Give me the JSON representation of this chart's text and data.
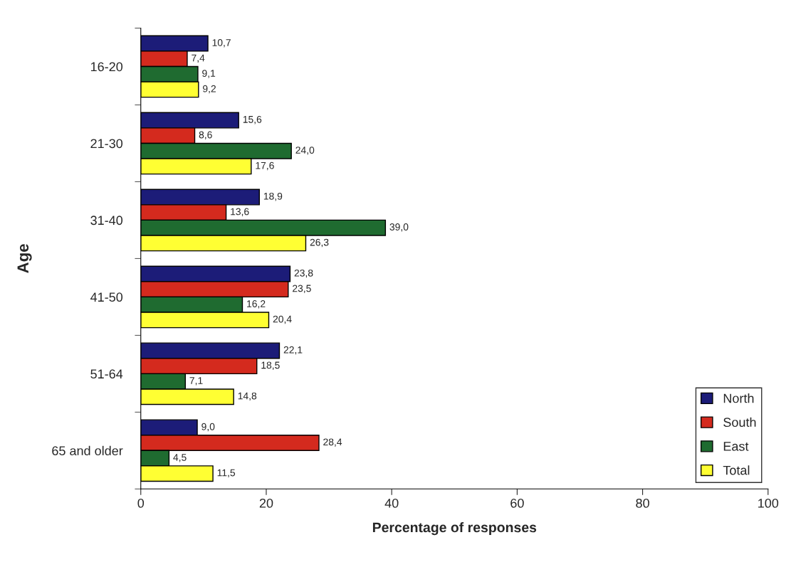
{
  "chart_data": {
    "type": "bar",
    "orientation": "horizontal",
    "xlabel": "Percentage of responses",
    "ylabel": "Age",
    "categories": [
      "16-20",
      "21-30",
      "31-40",
      "41-50",
      "51-64",
      "65 and older"
    ],
    "series": [
      {
        "name": "North",
        "color": "#1c1c78",
        "values": [
          10.7,
          15.6,
          18.9,
          23.8,
          22.1,
          9.0
        ],
        "value_labels": [
          "10,7",
          "15,6",
          "18,9",
          "23,8",
          "22,1",
          "9,0"
        ]
      },
      {
        "name": "South",
        "color": "#d42a1e",
        "values": [
          7.4,
          8.6,
          13.6,
          23.5,
          18.5,
          28.4
        ],
        "value_labels": [
          "7,4",
          "8,6",
          "13,6",
          "23,5",
          "18,5",
          "28,4"
        ]
      },
      {
        "name": "East",
        "color": "#1f6b30",
        "values": [
          9.1,
          24.0,
          39.0,
          16.2,
          7.1,
          4.5
        ],
        "value_labels": [
          "9,1",
          "24,0",
          "39,0",
          "16,2",
          "7,1",
          "4,5"
        ]
      },
      {
        "name": "Total",
        "color": "#ffff33",
        "values": [
          9.2,
          17.6,
          26.3,
          20.4,
          14.8,
          11.5
        ],
        "value_labels": [
          "9,2",
          "17,6",
          "26,3",
          "20,4",
          "14,8",
          "11,5"
        ]
      }
    ],
    "xlim": [
      0,
      100
    ],
    "xticks": [
      0,
      20,
      40,
      60,
      80,
      100
    ],
    "grid": false,
    "legend": "bottom right"
  }
}
